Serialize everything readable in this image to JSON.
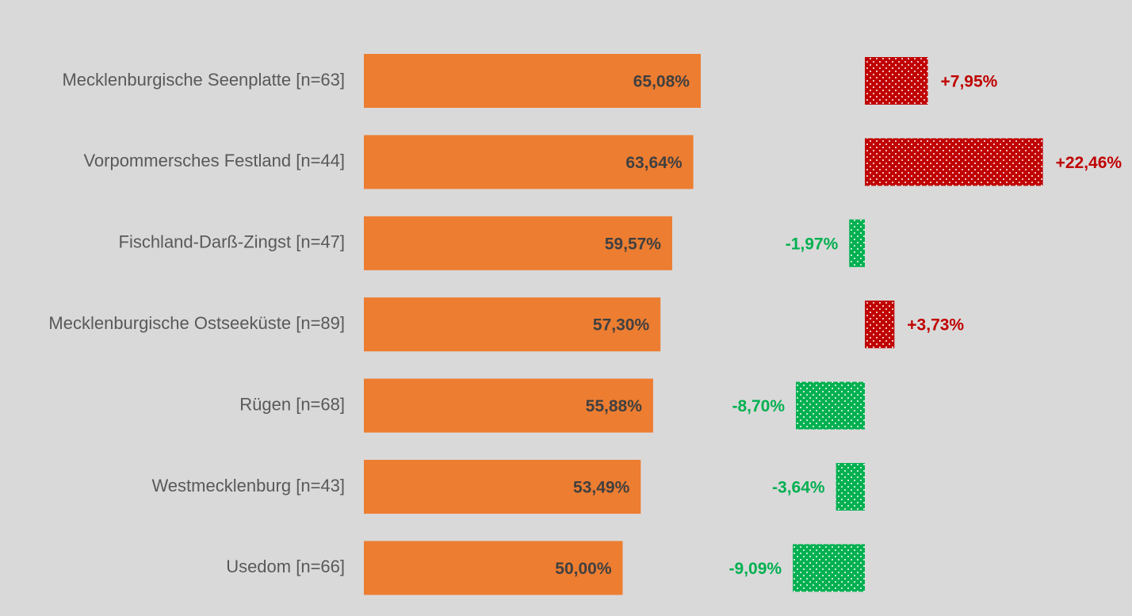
{
  "chart_data": [
    {
      "type": "bar",
      "orientation": "horizontal",
      "categories": [
        "Mecklenburgische Seenplatte [n=63]",
        "Vorpommersches Festland [n=44]",
        "Fischland-Darß-Zingst [n=47]",
        "Mecklenburgische Ostseeküste [n=89]",
        "Rügen [n=68]",
        "Westmecklenburg [n=43]",
        "Usedom [n=66]"
      ],
      "values": [
        65.08,
        63.64,
        59.57,
        57.3,
        55.88,
        53.49,
        50.0
      ],
      "value_labels": [
        "65,08%",
        "63,64%",
        "59,57%",
        "57,30%",
        "55,88%",
        "53,49%",
        "50,00%"
      ],
      "color": "#ED7D31",
      "xlim": [
        0,
        100
      ]
    },
    {
      "type": "bar",
      "orientation": "horizontal",
      "values": [
        7.95,
        22.46,
        -1.97,
        3.73,
        -8.7,
        -3.64,
        -9.09
      ],
      "value_labels": [
        "+7,95%",
        "+22,46%",
        "-1,97%",
        "+3,73%",
        "-8,70%",
        "-3,64%",
        "-9,09%"
      ],
      "colors": {
        "positive": "#C00000",
        "negative": "#00B050"
      },
      "pattern": "dots",
      "xlim": [
        -10,
        25
      ]
    }
  ]
}
